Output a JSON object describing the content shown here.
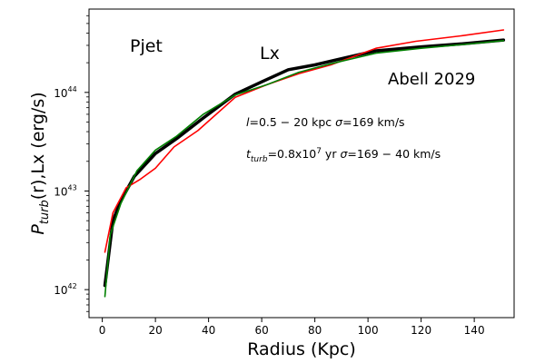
{
  "chart_data": {
    "type": "line",
    "title": "",
    "xlabel": "Radius (Kpc)",
    "ylabel": {
      "main": "P",
      "sub": "turb",
      "rest": "(r),Lx (erg/s)"
    },
    "xlim": [
      -5,
      155
    ],
    "ylim": [
      5.2e+41,
      7e+44
    ],
    "yscale": "log",
    "grid": false,
    "x_ticks": [
      0,
      20,
      40,
      60,
      80,
      100,
      120,
      140
    ],
    "y_ticks": [
      {
        "value": 1e+42,
        "base": "10",
        "exp": "42"
      },
      {
        "value": 1e+43,
        "base": "10",
        "exp": "43"
      },
      {
        "value": 1e+44,
        "base": "10",
        "exp": "44"
      }
    ],
    "annotations": {
      "pjet": "Pjet",
      "lx": "Lx",
      "cluster": "Abell 2029",
      "line1": {
        "pre": "l",
        "mid": "=0.5 − 20 kpc ",
        "sigma": "σ",
        "post": "=169 km/s"
      },
      "line2": {
        "pre": "t",
        "sub": "turb",
        "mid": "=0.8x10",
        "sup": "7",
        "mid2": " yr ",
        "sigma": "σ",
        "post": "=169 − 40 km/s"
      }
    },
    "series": [
      {
        "color": "#000000",
        "width": 3.5,
        "x": [
          1,
          4,
          7,
          12,
          20,
          28,
          38,
          50,
          60,
          70,
          80,
          92,
          103,
          120,
          135,
          151
        ],
        "y": [
          1.1e+42,
          5e+42,
          8e+42,
          1.4e+43,
          2.4e+43,
          3.4e+43,
          5.5e+43,
          9.6e+43,
          1.28e+44,
          1.7e+44,
          1.9e+44,
          2.26e+44,
          2.64e+44,
          2.9e+44,
          3.1e+44,
          3.4e+44
        ]
      },
      {
        "color": "#ff0000",
        "width": 1.6,
        "x": [
          1,
          4,
          9,
          14,
          20,
          27,
          36,
          50,
          62,
          74,
          86,
          103,
          118,
          135,
          151
        ],
        "y": [
          2.4e+42,
          6e+42,
          1.08e+43,
          1.3e+43,
          1.7e+43,
          2.8e+43,
          4.1e+43,
          8.9e+43,
          1.2e+44,
          1.55e+44,
          1.9e+44,
          2.8e+44,
          3.3e+44,
          3.75e+44,
          4.3e+44
        ]
      },
      {
        "color": "#008000",
        "width": 1.6,
        "x": [
          1,
          3,
          7,
          13,
          20,
          28,
          38,
          50,
          62,
          74,
          86,
          103,
          120,
          135,
          151
        ],
        "y": [
          8.5e+41,
          3.6e+42,
          7.5e+42,
          1.6e+43,
          2.6e+43,
          3.6e+43,
          6e+43,
          9.4e+43,
          1.2e+44,
          1.6e+44,
          1.95e+44,
          2.5e+44,
          2.8e+44,
          3.05e+44,
          3.35e+44
        ]
      }
    ]
  }
}
